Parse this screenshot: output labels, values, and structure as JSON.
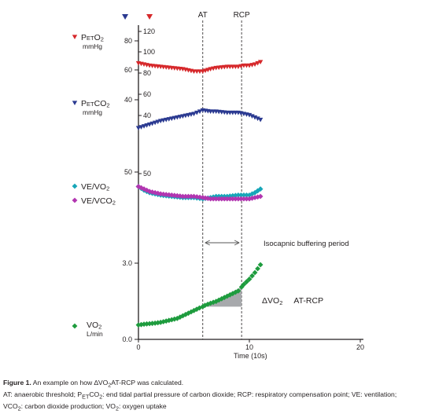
{
  "chart_data": {
    "type": "scatter",
    "x_axis": {
      "label": "Time",
      "unit": "(10s)",
      "range": [
        0,
        20
      ],
      "ticks": [
        "0",
        "10",
        "20"
      ]
    },
    "markers": {
      "AT": {
        "label": "AT",
        "x": 5.8
      },
      "RCP": {
        "label": "RCP",
        "x": 9.3
      },
      "period_arrow": {
        "from": 5.8,
        "to": 9.3,
        "label": "Isocapnic buffering period"
      }
    },
    "top_triangles": [
      {
        "x": -1.2,
        "color": "#2b3a91"
      },
      {
        "x": 1.0,
        "color": "#d6282b"
      }
    ],
    "panels": [
      {
        "id": "co2",
        "left_ticks": [
          "80",
          "60",
          "40"
        ],
        "right_ticks": [
          "120",
          "100",
          "80",
          "60",
          "40"
        ],
        "series": [
          {
            "name": "PETO2",
            "name_main": "P",
            "name_sub": "ET",
            "name_tail": "O2",
            "unit": "mmHg",
            "color": "#d6282b",
            "marker": "triangle-down",
            "x": [
              0,
              1,
              2,
              3,
              4,
              5,
              5.8,
              6.5,
              7,
              8,
              9,
              9.5,
              10,
              10.5,
              11
            ],
            "y": [
              103,
              101,
              100,
              99,
              98,
              96,
              96,
              98,
              99,
              100,
              100,
              101,
              101,
              102,
              104
            ]
          },
          {
            "name": "PETCO2",
            "name_main": "P",
            "name_sub": "ET",
            "name_tail": "CO2",
            "unit": "mmHg",
            "color": "#2b3a91",
            "marker": "triangle-down",
            "x": [
              0,
              1,
              2,
              3,
              4,
              5,
              5.8,
              6.5,
              7,
              8,
              9,
              9.5,
              10,
              10.5,
              11
            ],
            "y": [
              48,
              51,
              54,
              56,
              58,
              60,
              63,
              62,
              62,
              61,
              61,
              60,
              59,
              57,
              55
            ]
          }
        ]
      },
      {
        "id": "ve",
        "left_ticks": [
          "50"
        ],
        "right_ticks": [
          "50"
        ],
        "series": [
          {
            "name": "VE/VO2",
            "name_main": "VE/VO",
            "name_sub": "",
            "name_tail": "2",
            "color": "#17a6b8",
            "marker": "diamond",
            "x": [
              0,
              0.5,
              1,
              2,
              3,
              4,
              5,
              5.8,
              6.5,
              7,
              8,
              9,
              9.5,
              10,
              10.5,
              11
            ],
            "y": [
              40,
              37,
              35,
              33,
              32,
              31,
              31,
              30,
              31,
              32,
              32,
              33,
              33,
              33,
              35,
              38
            ]
          },
          {
            "name": "VE/VCO2",
            "name_main": "VE/VCO",
            "name_sub": "",
            "name_tail": "2",
            "color": "#b235b0",
            "marker": "diamond",
            "x": [
              0,
              0.5,
              1,
              2,
              3,
              4,
              5,
              5.8,
              6.5,
              7,
              8,
              9,
              9.5,
              10,
              10.5,
              11
            ],
            "y": [
              40,
              38,
              36,
              34,
              33,
              32,
              32,
              31,
              30,
              30,
              30,
              30,
              30,
              30,
              31,
              32
            ]
          }
        ]
      },
      {
        "id": "vo2",
        "left_ticks": [
          "3.0",
          "0.0"
        ],
        "ylim": [
          0,
          3.0
        ],
        "series": [
          {
            "name": "VO2",
            "name_main": "VO",
            "name_sub": "",
            "name_tail": "2",
            "unit": "L/min",
            "color": "#1e9c3e",
            "marker": "diamond",
            "x": [
              0,
              0.5,
              1,
              1.5,
              2,
              2.5,
              3,
              3.5,
              4,
              4.5,
              5,
              5.5,
              5.8,
              6,
              6.5,
              7,
              7.5,
              8,
              8.5,
              9,
              9.3,
              9.5,
              10,
              10.5,
              11
            ],
            "y": [
              0.55,
              0.58,
              0.6,
              0.62,
              0.65,
              0.7,
              0.75,
              0.8,
              0.9,
              1.0,
              1.1,
              1.2,
              1.25,
              1.3,
              1.38,
              1.45,
              1.55,
              1.65,
              1.75,
              1.85,
              2.0,
              2.1,
              2.3,
              2.55,
              2.85
            ]
          }
        ],
        "triangle_label": {
          "main": "ΔVO",
          "sub": "2",
          "tail": "AT-RCP"
        }
      }
    ]
  },
  "caption": {
    "line1_bold": "Figure 1.",
    "line1_text_a": " An example on how ∆VO",
    "line1_sub": "2",
    "line1_text_b": "AT-RCP was calculated.",
    "line2_a": "AT: anaerobic threshold; P",
    "line2_sub1": "ET",
    "line2_b": "CO",
    "line2_sub2": "2",
    "line2_c": ": end tidal partial pressure of carbon dioxide; RCP: respiratory compensation point; VE: ventilation;",
    "line3_a": "VCO",
    "line3_sub1": "2",
    "line3_b": ": carbon dioxide production; VO",
    "line3_sub2": "2",
    "line3_c": ": oxygen uptake"
  }
}
